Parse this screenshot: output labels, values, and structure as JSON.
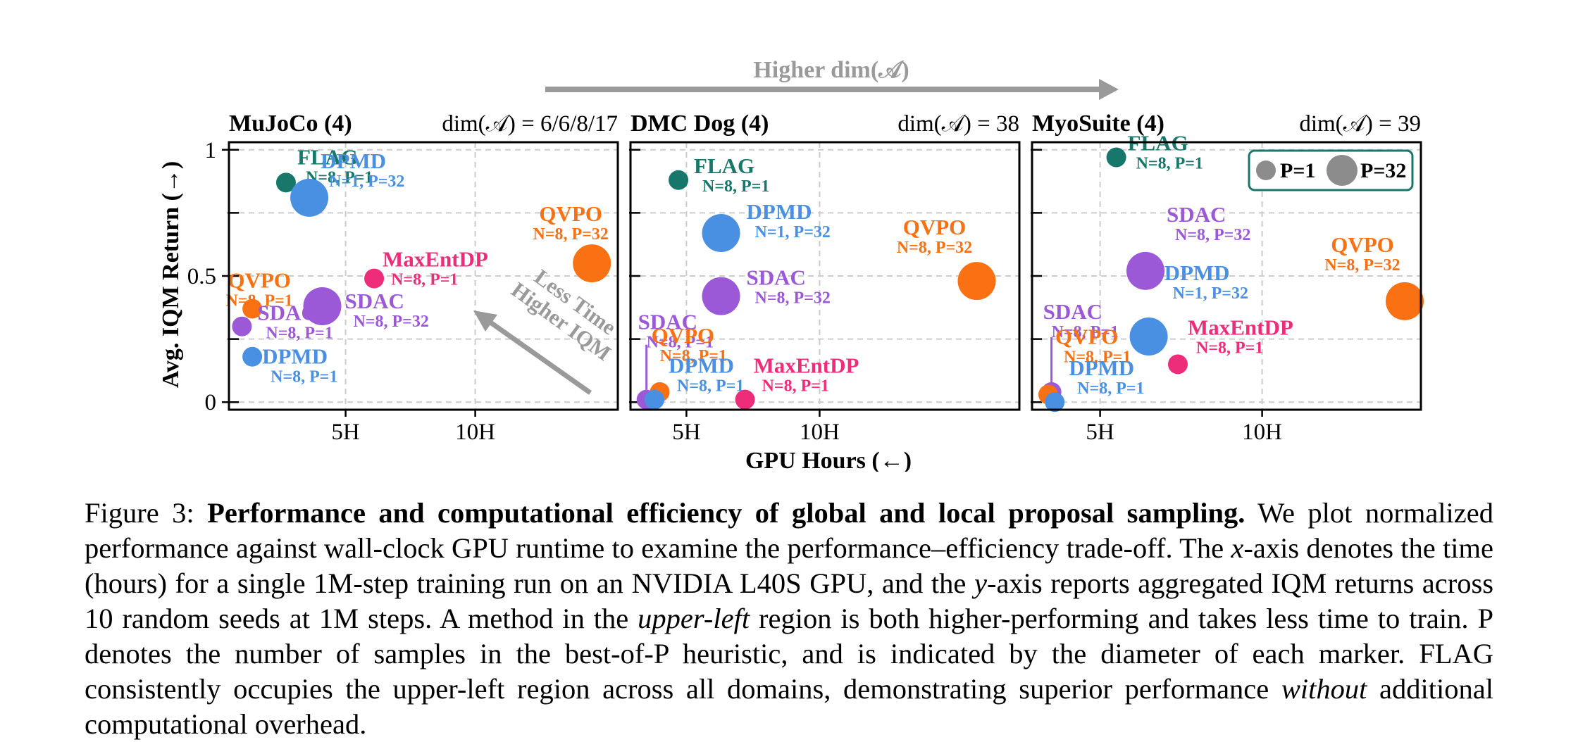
{
  "figure": {
    "top_arrow_label": "Higher dim(𝒜)",
    "x_axis_label": "GPU Hours (←)",
    "y_axis_label": "Avg. IQM Return (→)",
    "annotation": [
      "Less Time",
      "Higher IQM"
    ]
  },
  "legend": {
    "p1_label": "P=1",
    "p32_label": "P=32"
  },
  "colors": {
    "FLAG": "#17776a",
    "DPMD": "#4a90e2",
    "QVPO": "#f97112",
    "SDAC": "#9b59d8",
    "MaxEntDP": "#ee2d7a",
    "arrow": "#9a9a9a"
  },
  "chart_data": [
    {
      "type": "scatter",
      "title": "MuJoCo (4)",
      "subtitle": "dim(𝒜) = 6/6/8/17",
      "xlabel": "GPU Hours (←)",
      "ylabel": "Avg. IQM Return (→)",
      "xlim": [
        0.5,
        15.5
      ],
      "ylim": [
        -0.03,
        1.03
      ],
      "xticks": [
        5,
        10
      ],
      "xtick_labels": [
        "5H",
        "10H"
      ],
      "yticks": [
        0,
        0.5,
        1
      ],
      "ytick_labels": [
        "0",
        "0.5",
        "1"
      ],
      "grid": true,
      "points": [
        {
          "method": "FLAG",
          "config": "N=8, P=1",
          "P": 1,
          "x": 2.7,
          "y": 0.87
        },
        {
          "method": "DPMD",
          "config": "N=1, P=32",
          "P": 32,
          "x": 3.6,
          "y": 0.81
        },
        {
          "method": "QVPO",
          "config": "N=8, P=32",
          "P": 32,
          "x": 14.5,
          "y": 0.55
        },
        {
          "method": "MaxEntDP",
          "config": "N=8, P=1",
          "P": 1,
          "x": 6.1,
          "y": 0.49
        },
        {
          "method": "QVPO",
          "config": "N=8, P=1",
          "P": 1,
          "x": 1.4,
          "y": 0.37
        },
        {
          "method": "SDAC",
          "config": "N=8, P=32",
          "P": 32,
          "x": 4.1,
          "y": 0.38
        },
        {
          "method": "SDAC",
          "config": "N=8, P=1",
          "P": 1,
          "x": 1.0,
          "y": 0.3
        },
        {
          "method": "DPMD",
          "config": "N=8, P=1",
          "P": 1,
          "x": 1.4,
          "y": 0.18
        }
      ]
    },
    {
      "type": "scatter",
      "title": "DMC Dog (4)",
      "subtitle": "dim(𝒜) = 38",
      "xlabel": "GPU Hours (←)",
      "ylabel": "Avg. IQM Return (→)",
      "xlim": [
        2.9,
        17.5
      ],
      "ylim": [
        -0.03,
        1.03
      ],
      "xticks": [
        5,
        10
      ],
      "xtick_labels": [
        "5H",
        "10H"
      ],
      "yticks": [
        0,
        0.5,
        1
      ],
      "ytick_labels": [
        "0",
        "0.5",
        "1"
      ],
      "grid": true,
      "points": [
        {
          "method": "FLAG",
          "config": "N=8, P=1",
          "P": 1,
          "x": 4.7,
          "y": 0.88
        },
        {
          "method": "DPMD",
          "config": "N=1, P=32",
          "P": 32,
          "x": 6.3,
          "y": 0.67
        },
        {
          "method": "QVPO",
          "config": "N=8, P=32",
          "P": 32,
          "x": 15.9,
          "y": 0.48
        },
        {
          "method": "SDAC",
          "config": "N=8, P=32",
          "P": 32,
          "x": 6.3,
          "y": 0.42
        },
        {
          "method": "SDAC",
          "config": "N=8, P=1",
          "P": 1,
          "x": 3.5,
          "y": 0.01
        },
        {
          "method": "QVPO",
          "config": "N=8, P=1",
          "P": 1,
          "x": 4.0,
          "y": 0.04
        },
        {
          "method": "DPMD",
          "config": "N=8, P=1",
          "P": 1,
          "x": 3.8,
          "y": 0.01
        },
        {
          "method": "MaxEntDP",
          "config": "N=8, P=1",
          "P": 1,
          "x": 7.2,
          "y": 0.01
        }
      ]
    },
    {
      "type": "scatter",
      "title": "MyoSuite (4)",
      "subtitle": "dim(𝒜) = 39",
      "xlabel": "GPU Hours (←)",
      "ylabel": "Avg. IQM Return (→)",
      "xlim": [
        2.9,
        14.9
      ],
      "ylim": [
        -0.03,
        1.03
      ],
      "xticks": [
        5,
        10
      ],
      "xtick_labels": [
        "5H",
        "10H"
      ],
      "yticks": [
        0,
        0.5,
        1
      ],
      "ytick_labels": [
        "0",
        "0.5",
        "1"
      ],
      "grid": true,
      "legend": "top-right",
      "points": [
        {
          "method": "FLAG",
          "config": "N=8, P=1",
          "P": 1,
          "x": 5.5,
          "y": 0.97
        },
        {
          "method": "SDAC",
          "config": "N=8, P=32",
          "P": 32,
          "x": 6.4,
          "y": 0.52
        },
        {
          "method": "QVPO",
          "config": "N=8, P=32",
          "P": 32,
          "x": 14.4,
          "y": 0.4
        },
        {
          "method": "DPMD",
          "config": "N=1, P=32",
          "P": 32,
          "x": 6.5,
          "y": 0.26
        },
        {
          "method": "MaxEntDP",
          "config": "N=8, P=1",
          "P": 1,
          "x": 7.4,
          "y": 0.15
        },
        {
          "method": "SDAC",
          "config": "N=8, P=1",
          "P": 1,
          "x": 3.5,
          "y": 0.04
        },
        {
          "method": "QVPO",
          "config": "N=8, P=1",
          "P": 1,
          "x": 3.4,
          "y": 0.03
        },
        {
          "method": "DPMD",
          "config": "N=8, P=1",
          "P": 1,
          "x": 3.6,
          "y": 0.0
        }
      ]
    }
  ],
  "caption": {
    "label": "Figure 3:",
    "bold": "Performance and computational efficiency of global and local proposal sampling.",
    "s1": "We plot normalized performance against wall-clock GPU runtime to examine the performance–efficiency trade-off. The",
    "xvar": "x",
    "s2": "-axis denotes the time (hours) for a single 1M-step training run on an NVIDIA L40S GPU, and the",
    "yvar": "y",
    "s3": "-axis reports aggregated IQM returns across 10 random seeds at 1M steps. A method in the",
    "italic1": "upper-left",
    "s4": "region is both higher-performing and takes less time to train. P denotes the number of samples in the best-of-P heuristic, and is indicated by the diameter of each marker. FLAG consistently occupies the upper-left region across all domains, demonstrating superior performance",
    "italic2": "without",
    "s5": "additional computational overhead."
  }
}
